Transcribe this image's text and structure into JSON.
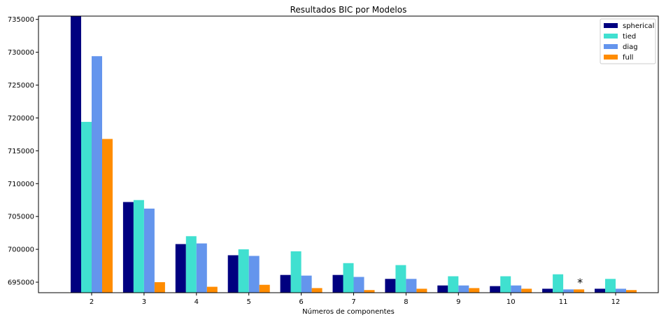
{
  "chart_data": {
    "type": "bar",
    "title": "Resultados BIC por Modelos",
    "xlabel": "Números de componentes",
    "ylabel": "",
    "categories": [
      "2",
      "3",
      "4",
      "5",
      "6",
      "7",
      "8",
      "9",
      "10",
      "11",
      "12"
    ],
    "ylim": [
      693400,
      735500
    ],
    "yticks": [
      695000,
      700000,
      705000,
      710000,
      715000,
      720000,
      725000,
      730000,
      735000
    ],
    "legend_position": "top-right",
    "grid": false,
    "series": [
      {
        "name": "spherical",
        "color": "#000080",
        "values": [
          735600,
          707200,
          700800,
          699100,
          696100,
          696100,
          695500,
          694500,
          694400,
          694000,
          694000
        ]
      },
      {
        "name": "tied",
        "color": "#40e0d0",
        "values": [
          719400,
          707500,
          702000,
          700000,
          699700,
          697900,
          697600,
          695900,
          695900,
          696200,
          695500
        ]
      },
      {
        "name": "diag",
        "color": "#6495ed",
        "values": [
          729400,
          706200,
          700900,
          699000,
          696000,
          695800,
          695500,
          694500,
          694500,
          693900,
          694000
        ]
      },
      {
        "name": "full",
        "color": "#ff8c00",
        "values": [
          716800,
          695000,
          694300,
          694600,
          694100,
          693800,
          694000,
          694100,
          694000,
          693900,
          693800
        ]
      }
    ],
    "annotation": {
      "text": "*",
      "category": "11",
      "value": 695000
    }
  }
}
